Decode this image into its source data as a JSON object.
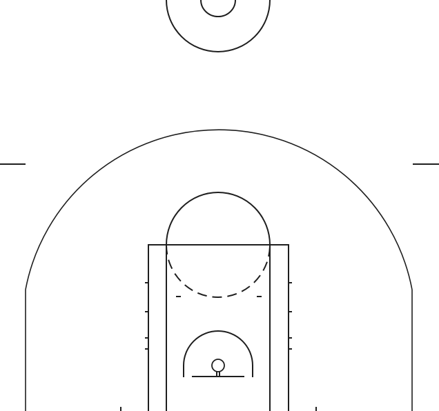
{
  "court": {
    "background_color": "#ffffff",
    "line_color": "#1e1e1e",
    "view": "half-court",
    "orientation": "basket-at-bottom",
    "elements": [
      "center-circle",
      "sideline-hash-marks",
      "three-point-line",
      "free-throw-circle",
      "free-throw-circle-dashed-half",
      "outer-lane",
      "inner-lane",
      "lane-space-marks",
      "restricted-area-arc",
      "backboard",
      "hoop",
      "baseline-ticks"
    ]
  }
}
